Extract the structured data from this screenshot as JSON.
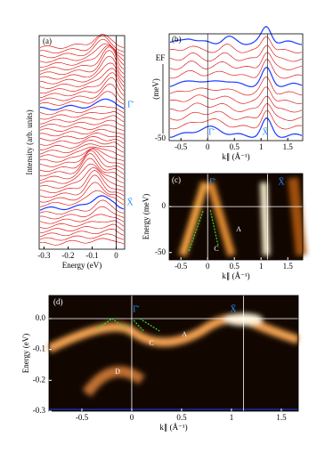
{
  "chart_data": [
    {
      "type": "stack",
      "xlabel": "Energy (eV)",
      "ylabel": "Intensity (arb. units)",
      "xlim": [
        -0.32,
        0.035
      ],
      "xticks": [
        -0.3,
        -0.2,
        -0.1,
        0
      ],
      "annotations": [
        "(a)",
        "Γ̄",
        "X̄"
      ]
    },
    {
      "type": "stack",
      "xlabel": "k∥ (Å⁻¹)",
      "xlim": [
        -0.72,
        1.78
      ],
      "xticks": [
        -0.5,
        0,
        0.5,
        1,
        1.5
      ],
      "annotations": [
        "(b)",
        "EF",
        "(meV)",
        "-50",
        "Γ̄",
        "X̄"
      ]
    },
    {
      "type": "heatmap",
      "xlabel": "k∥ (Å⁻¹)",
      "ylabel": "Energy (meV)",
      "xlim": [
        -0.72,
        1.78
      ],
      "xticks": [
        -0.5,
        0,
        0.5,
        1,
        1.5
      ],
      "ylim": [
        -58,
        36
      ],
      "yticks": [
        -50,
        0
      ],
      "annotations": [
        "(c)",
        "Γ̄",
        "X̄",
        "A",
        "C"
      ]
    },
    {
      "type": "heatmap",
      "xlabel": "k∥ (Å⁻¹)",
      "ylabel": "Energy (eV)",
      "xlim": [
        -0.83,
        1.67
      ],
      "xticks": [
        -0.5,
        0,
        0.5,
        1,
        1.5
      ],
      "ylim": [
        -0.3,
        0.075
      ],
      "yticks": [
        {
          "value": 0,
          "label": "0.0"
        },
        -0.1,
        -0.2,
        -0.3
      ],
      "annotations": [
        "(d)",
        "Γ̄",
        "X̄",
        "A",
        "C",
        "D"
      ]
    }
  ]
}
